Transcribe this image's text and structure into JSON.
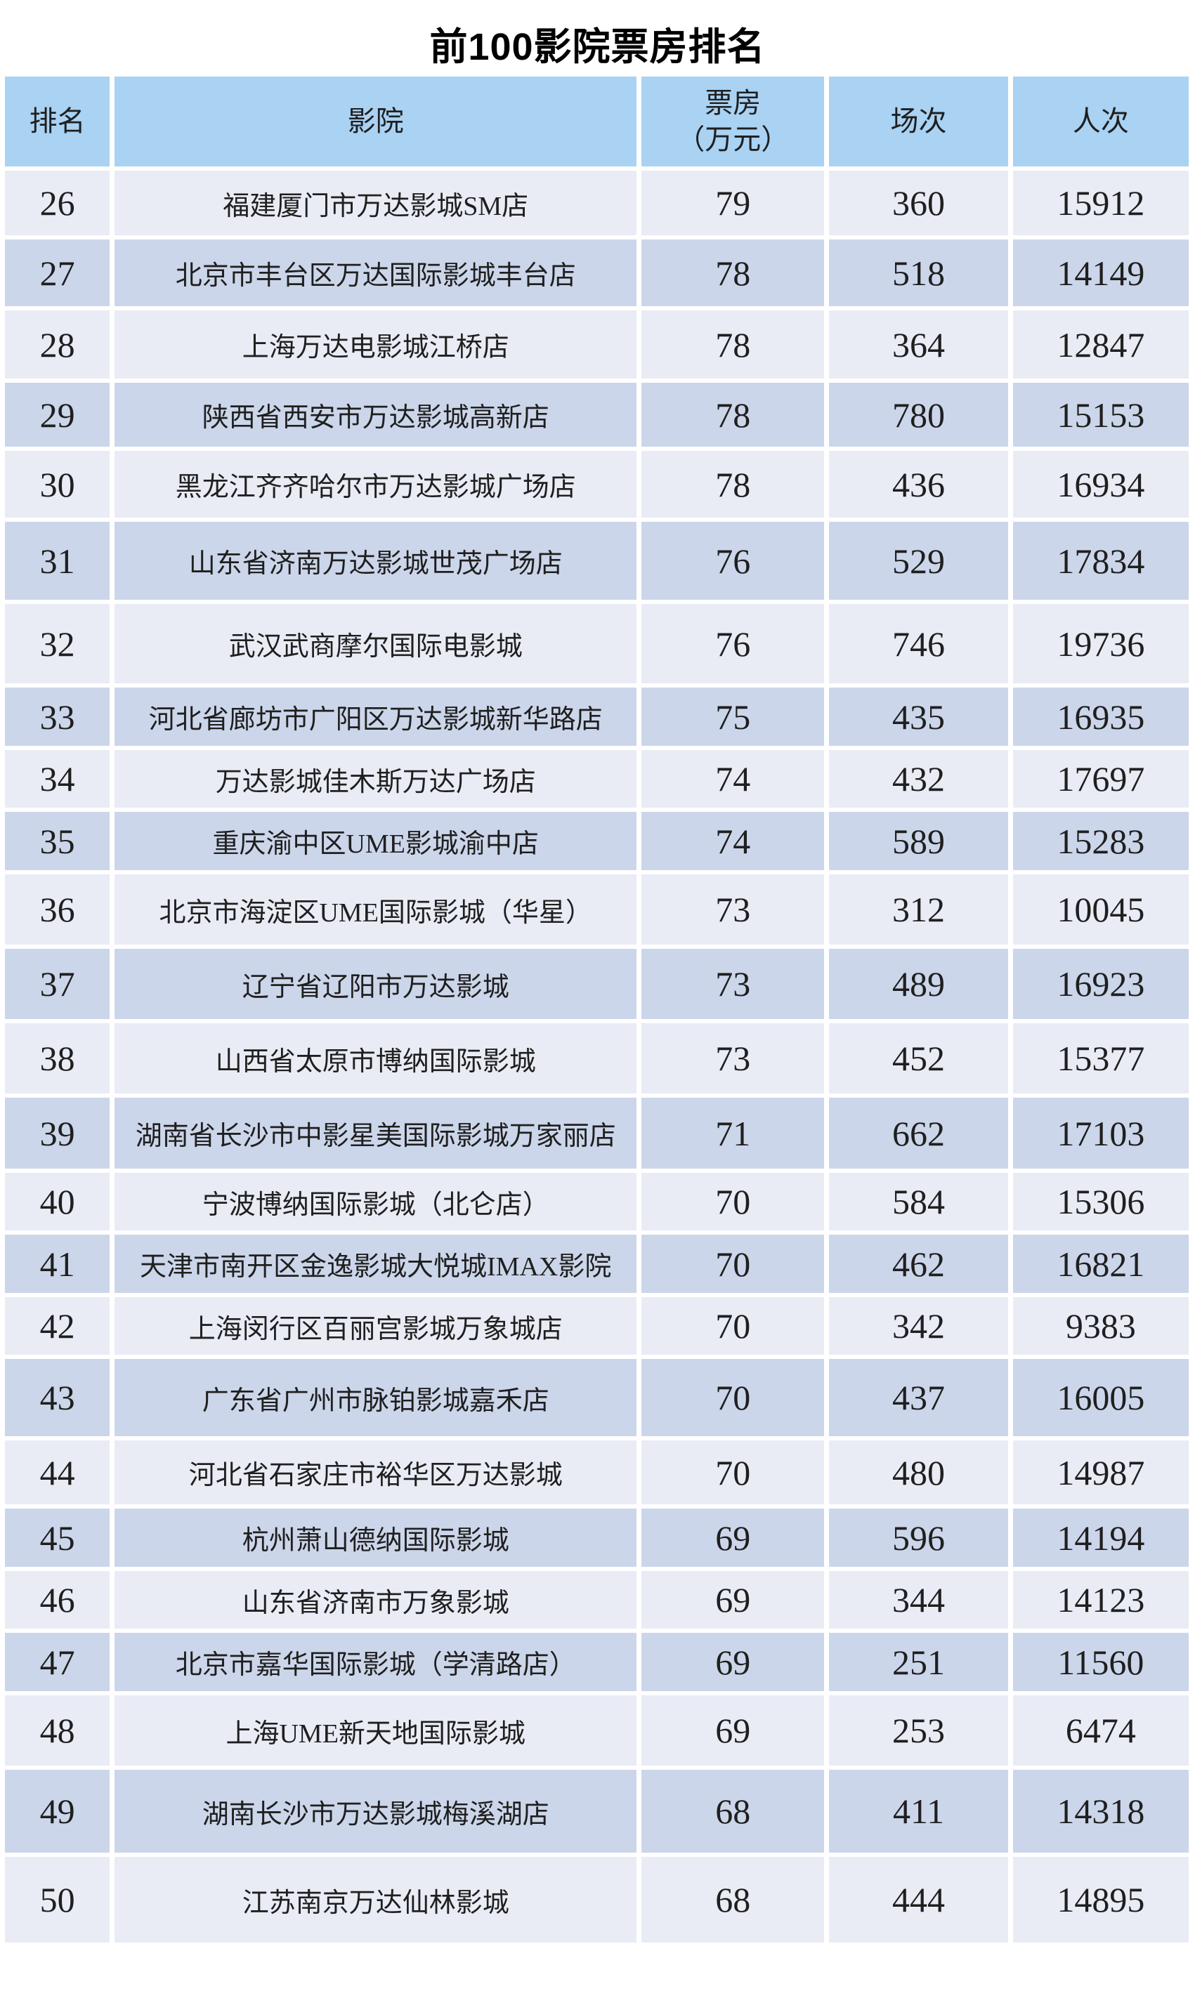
{
  "title": "前100影院票房排名",
  "colors": {
    "header_bg": "#a9d2f3",
    "row_light_bg": "#e9ecf5",
    "row_dark_bg": "#ccd6ea",
    "text": "#1f1f1f",
    "background": "#ffffff"
  },
  "table": {
    "columns": [
      {
        "key": "rank",
        "label": "排名"
      },
      {
        "key": "cinema",
        "label": "影院"
      },
      {
        "key": "box_office",
        "label": "票房",
        "label_line2": "（万元）"
      },
      {
        "key": "sessions",
        "label": "场次"
      },
      {
        "key": "admissions",
        "label": "人次"
      }
    ],
    "rows": [
      {
        "rank": "26",
        "cinema": "福建厦门市万达影城SM店",
        "box_office": "79",
        "sessions": "360",
        "admissions": "15912"
      },
      {
        "rank": "27",
        "cinema": "北京市丰台区万达国际影城丰台店",
        "box_office": "78",
        "sessions": "518",
        "admissions": "14149"
      },
      {
        "rank": "28",
        "cinema": "上海万达电影城江桥店",
        "box_office": "78",
        "sessions": "364",
        "admissions": "12847"
      },
      {
        "rank": "29",
        "cinema": "陕西省西安市万达影城高新店",
        "box_office": "78",
        "sessions": "780",
        "admissions": "15153"
      },
      {
        "rank": "30",
        "cinema": "黑龙江齐齐哈尔市万达影城广场店",
        "box_office": "78",
        "sessions": "436",
        "admissions": "16934"
      },
      {
        "rank": "31",
        "cinema": "山东省济南万达影城世茂广场店",
        "box_office": "76",
        "sessions": "529",
        "admissions": "17834"
      },
      {
        "rank": "32",
        "cinema": "武汉武商摩尔国际电影城",
        "box_office": "76",
        "sessions": "746",
        "admissions": "19736"
      },
      {
        "rank": "33",
        "cinema": "河北省廊坊市广阳区万达影城新华路店",
        "box_office": "75",
        "sessions": "435",
        "admissions": "16935"
      },
      {
        "rank": "34",
        "cinema": "万达影城佳木斯万达广场店",
        "box_office": "74",
        "sessions": "432",
        "admissions": "17697"
      },
      {
        "rank": "35",
        "cinema": "重庆渝中区UME影城渝中店",
        "box_office": "74",
        "sessions": "589",
        "admissions": "15283"
      },
      {
        "rank": "36",
        "cinema": "北京市海淀区UME国际影城（华星）",
        "box_office": "73",
        "sessions": "312",
        "admissions": "10045"
      },
      {
        "rank": "37",
        "cinema": "辽宁省辽阳市万达影城",
        "box_office": "73",
        "sessions": "489",
        "admissions": "16923"
      },
      {
        "rank": "38",
        "cinema": "山西省太原市博纳国际影城",
        "box_office": "73",
        "sessions": "452",
        "admissions": "15377"
      },
      {
        "rank": "39",
        "cinema": "湖南省长沙市中影星美国际影城万家丽店",
        "box_office": "71",
        "sessions": "662",
        "admissions": "17103"
      },
      {
        "rank": "40",
        "cinema": "宁波博纳国际影城（北仑店）",
        "box_office": "70",
        "sessions": "584",
        "admissions": "15306"
      },
      {
        "rank": "41",
        "cinema": "天津市南开区金逸影城大悦城IMAX影院",
        "box_office": "70",
        "sessions": "462",
        "admissions": "16821"
      },
      {
        "rank": "42",
        "cinema": "上海闵行区百丽宫影城万象城店",
        "box_office": "70",
        "sessions": "342",
        "admissions": "9383"
      },
      {
        "rank": "43",
        "cinema": "广东省广州市脉铂影城嘉禾店",
        "box_office": "70",
        "sessions": "437",
        "admissions": "16005"
      },
      {
        "rank": "44",
        "cinema": "河北省石家庄市裕华区万达影城",
        "box_office": "70",
        "sessions": "480",
        "admissions": "14987"
      },
      {
        "rank": "45",
        "cinema": "杭州萧山德纳国际影城",
        "box_office": "69",
        "sessions": "596",
        "admissions": "14194"
      },
      {
        "rank": "46",
        "cinema": "山东省济南市万象影城",
        "box_office": "69",
        "sessions": "344",
        "admissions": "14123"
      },
      {
        "rank": "47",
        "cinema": "北京市嘉华国际影城（学清路店）",
        "box_office": "69",
        "sessions": "251",
        "admissions": "11560"
      },
      {
        "rank": "48",
        "cinema": "上海UME新天地国际影城",
        "box_office": "69",
        "sessions": "253",
        "admissions": "6474"
      },
      {
        "rank": "49",
        "cinema": "湖南长沙市万达影城梅溪湖店",
        "box_office": "68",
        "sessions": "411",
        "admissions": "14318"
      },
      {
        "rank": "50",
        "cinema": "江苏南京万达仙林影城",
        "box_office": "68",
        "sessions": "444",
        "admissions": "14895"
      }
    ]
  }
}
